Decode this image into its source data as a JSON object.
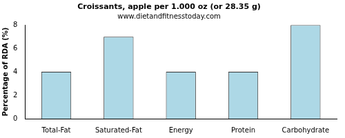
{
  "chart_data": {
    "type": "bar",
    "title": "Croissants, apple per 1.000 oz (or 28.35 g)",
    "subtitle": "www.dietandfitnesstoday.com",
    "y_label": "Percentage of RDA (%)",
    "categories": [
      "Total-Fat",
      "Saturated-Fat",
      "Energy",
      "Protein",
      "Carbohydrate"
    ],
    "values": [
      4,
      7,
      4,
      4,
      8
    ],
    "color": "#add8e6",
    "ylim": [
      0,
      8
    ],
    "yticks": [
      0,
      2,
      4,
      6,
      8
    ],
    "grid": false
  }
}
